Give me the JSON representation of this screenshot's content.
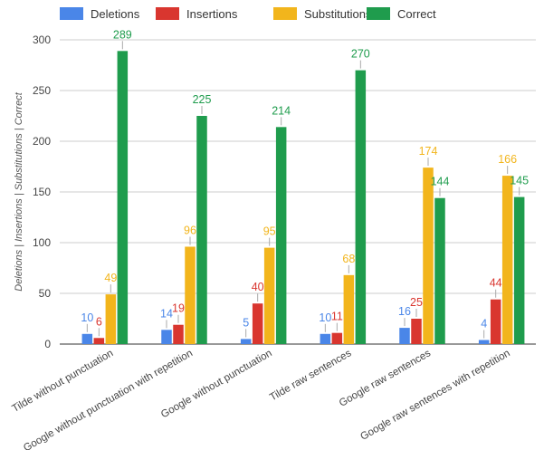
{
  "chart_data": {
    "type": "bar",
    "title": "",
    "xlabel": "",
    "ylabel": "Deletions | Insertions | Substitutions | Correct",
    "ylim": [
      0,
      300
    ],
    "yticks": [
      0,
      50,
      100,
      150,
      200,
      250,
      300
    ],
    "grid": true,
    "legend_position": "top",
    "categories": [
      "Tilde without punctuation",
      "Google without punctuation with repetition",
      "Google without punctuation",
      "Tilde raw sentences",
      "Google raw sentences",
      "Google raw sentences with repetition"
    ],
    "series": [
      {
        "name": "Deletions",
        "color": "#4a86e8",
        "values": [
          10,
          14,
          5,
          10,
          16,
          4
        ]
      },
      {
        "name": "Insertions",
        "color": "#d9362f",
        "values": [
          6,
          19,
          40,
          11,
          25,
          44
        ]
      },
      {
        "name": "Substitutions",
        "color": "#f2b51c",
        "values": [
          49,
          96,
          95,
          68,
          174,
          166
        ]
      },
      {
        "name": "Correct",
        "color": "#1f9c4d",
        "values": [
          289,
          225,
          214,
          270,
          144,
          145
        ]
      }
    ]
  }
}
